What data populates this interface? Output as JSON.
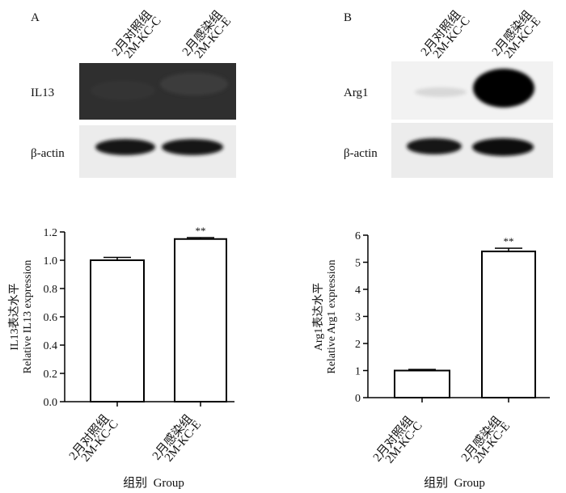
{
  "panels": [
    {
      "letter": "A",
      "lane_labels": [
        {
          "cn": "2月对照组",
          "en": "2M-KC-C"
        },
        {
          "cn": "2月感染组",
          "en": "2M-KC-E"
        }
      ],
      "blots": [
        {
          "label": "IL13",
          "band_intensity": [
            0.05,
            0.12
          ]
        },
        {
          "label": "β-actin",
          "band_intensity": [
            0.9,
            0.92
          ]
        }
      ],
      "group_labels": [
        {
          "cn": "2月对照组",
          "en": "2M-KC-C"
        },
        {
          "cn": "2月感染组",
          "en": "2M-KC-E"
        }
      ],
      "xlabel": "组别  Group",
      "ylabel_cn": "IL13表达水平",
      "ylabel_en": "Relative IL13 expression"
    },
    {
      "letter": "B",
      "lane_labels": [
        {
          "cn": "2月对照组",
          "en": "2M-KC-C"
        },
        {
          "cn": "2月感染组",
          "en": "2M-KC-E"
        }
      ],
      "blots": [
        {
          "label": "Arg1",
          "band_intensity": [
            0.08,
            1.0
          ]
        },
        {
          "label": "β-actin",
          "band_intensity": [
            0.9,
            0.95
          ]
        }
      ],
      "group_labels": [
        {
          "cn": "2月对照组",
          "en": "2M-KC-C"
        },
        {
          "cn": "2月感染组",
          "en": "2M-KC-E"
        }
      ],
      "xlabel": "组别  Group",
      "ylabel_cn": "Arg1表达水平",
      "ylabel_en": "Relative Arg1 expression"
    }
  ],
  "chart_data": [
    {
      "type": "bar",
      "categories": [
        "2月对照组 2M-KC-C",
        "2月感染组 2M-KC-E"
      ],
      "values": [
        1.0,
        1.15
      ],
      "errors": [
        0.02,
        0.01
      ],
      "significance": [
        "",
        "**"
      ],
      "ylim": [
        0.0,
        1.2
      ],
      "yticks": [
        "0.0",
        "0.2",
        "0.4",
        "0.6",
        "0.8",
        "1.0",
        "1.2"
      ],
      "xlabel": "组别  Group",
      "ylabel": "IL13表达水平 Relative IL13 expression",
      "grid": false
    },
    {
      "type": "bar",
      "categories": [
        "2月对照组 2M-KC-C",
        "2月感染组 2M-KC-E"
      ],
      "values": [
        1.0,
        5.4
      ],
      "errors": [
        0.04,
        0.12
      ],
      "significance": [
        "",
        "**"
      ],
      "ylim": [
        0,
        6
      ],
      "yticks": [
        "0",
        "1",
        "2",
        "3",
        "4",
        "5",
        "6"
      ],
      "xlabel": "组别  Group",
      "ylabel": "Arg1表达水平 Relative Arg1 expression",
      "grid": false
    }
  ]
}
